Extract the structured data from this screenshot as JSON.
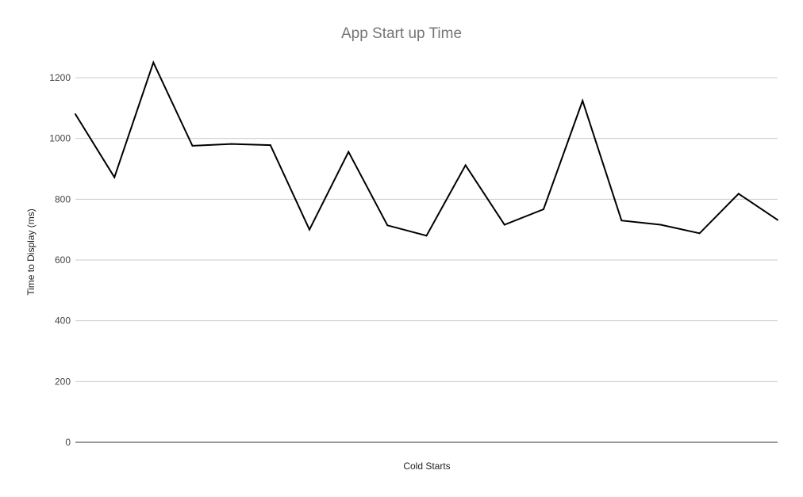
{
  "chart_data": {
    "type": "line",
    "title": "App Start up Time",
    "xlabel": "Cold Starts",
    "ylabel": "Time to Display (ms)",
    "ylim": [
      0,
      1200
    ],
    "yticks": [
      0,
      200,
      400,
      600,
      800,
      1000,
      1200
    ],
    "grid": true,
    "legend": "none",
    "series": [
      {
        "color": "#000000",
        "values": [
          1080,
          872,
          1250,
          976,
          982,
          978,
          700,
          956,
          714,
          680,
          912,
          716,
          767,
          1124,
          730,
          716,
          688,
          818,
          732
        ]
      }
    ]
  }
}
